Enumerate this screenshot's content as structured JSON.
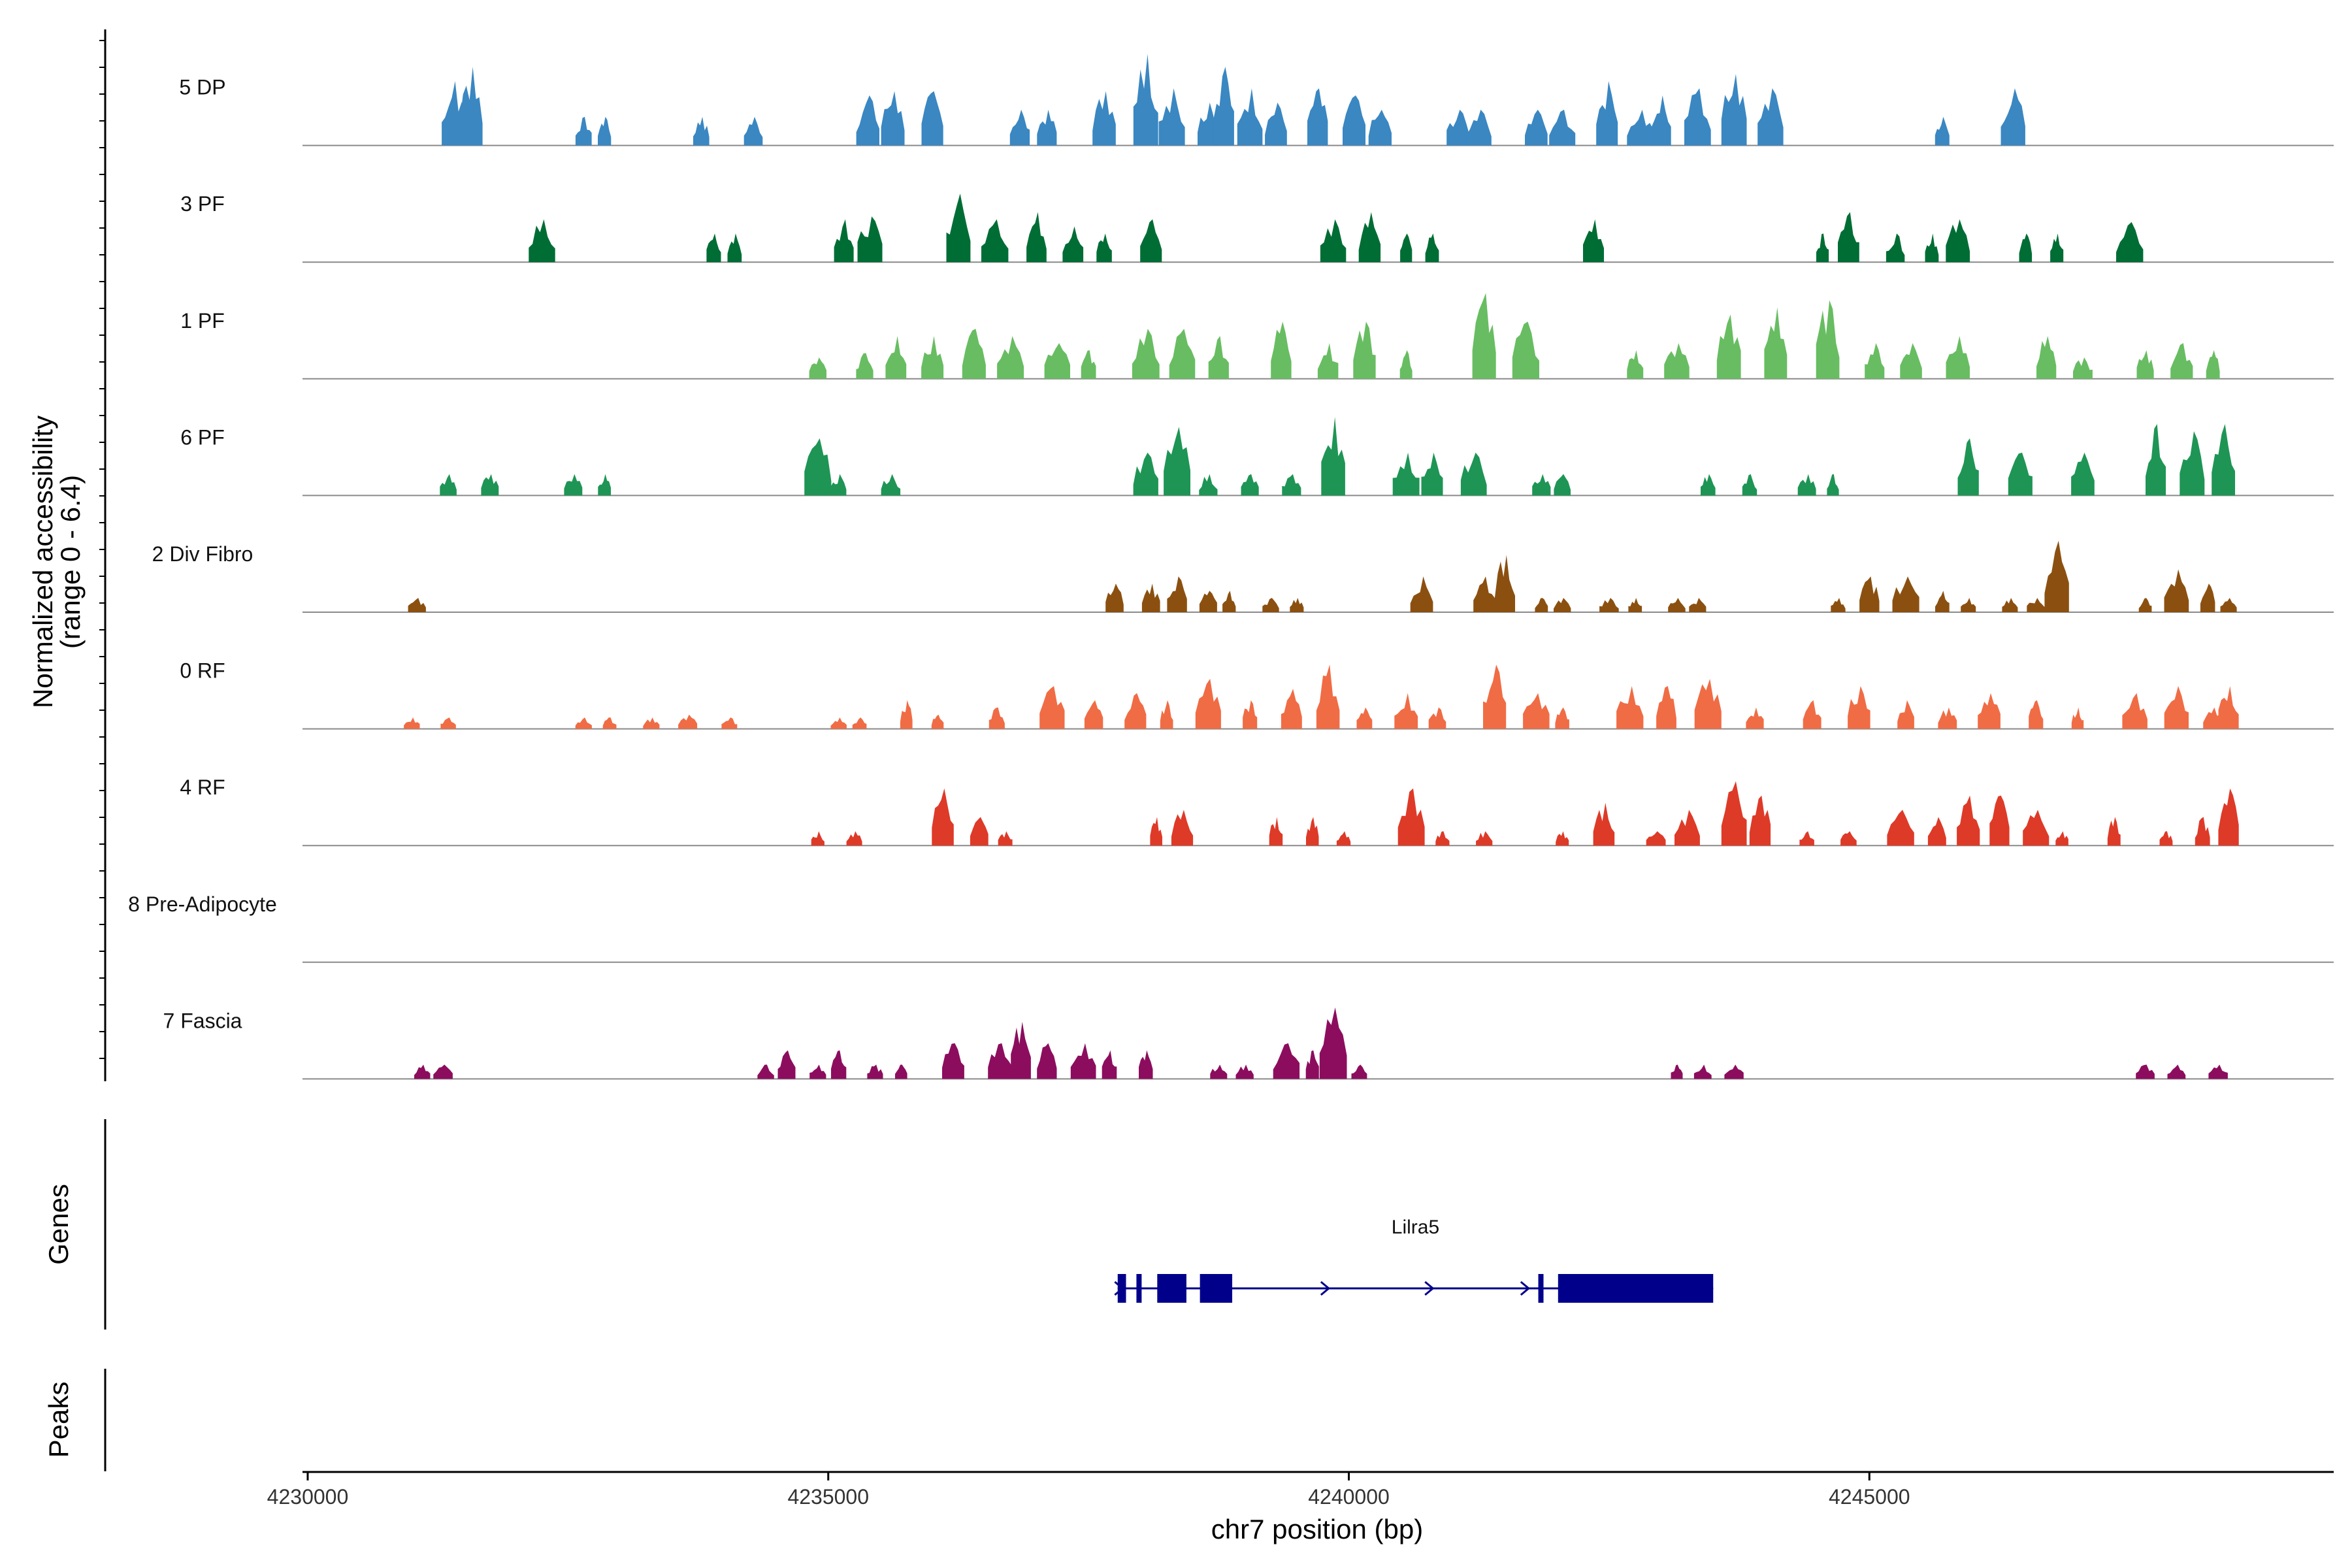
{
  "chart_data": {
    "type": "area",
    "title": "",
    "ylabel": "Normalized accessibility",
    "ylabel_range": "(range 0 - 6.4)",
    "ylim": [
      0,
      6.4
    ],
    "xlabel": "chr7 position (bp)",
    "xlim": [
      4229950,
      4249460
    ],
    "x_ticks": [
      4230000,
      4235000,
      4240000,
      4245000
    ],
    "x_tick_labels": [
      "4230000",
      "4235000",
      "4240000",
      "4245000"
    ],
    "tracks": [
      {
        "name": "5 DP",
        "color": "#3a87c2",
        "peaks": [
          [
            4231400,
            4.5
          ],
          [
            4231570,
            5.5
          ],
          [
            4232650,
            2.0
          ],
          [
            4232850,
            2.0
          ],
          [
            4233780,
            2.0
          ],
          [
            4234280,
            2.0
          ],
          [
            4235380,
            3.5
          ],
          [
            4235620,
            3.8
          ],
          [
            4236000,
            3.8
          ],
          [
            4236840,
            2.5
          ],
          [
            4237100,
            2.5
          ],
          [
            4237650,
            3.8
          ],
          [
            4238050,
            6.4
          ],
          [
            4238300,
            4.0
          ],
          [
            4238650,
            3.0
          ],
          [
            4238800,
            5.5
          ],
          [
            4239050,
            4.0
          ],
          [
            4239300,
            3.0
          ],
          [
            4239700,
            4.0
          ],
          [
            4240050,
            3.5
          ],
          [
            4240300,
            2.5
          ],
          [
            4241050,
            2.5
          ],
          [
            4241250,
            2.5
          ],
          [
            4241800,
            2.5
          ],
          [
            4242050,
            2.5
          ],
          [
            4242480,
            4.5
          ],
          [
            4242800,
            2.5
          ],
          [
            4243000,
            3.5
          ],
          [
            4243350,
            4.0
          ],
          [
            4243700,
            5.0
          ],
          [
            4244050,
            4.0
          ],
          [
            4245700,
            2.0
          ],
          [
            4246380,
            4.0
          ]
        ]
      },
      {
        "name": "3 PF",
        "color": "#006d35",
        "peaks": [
          [
            4232250,
            3.0
          ],
          [
            4233900,
            2.0
          ],
          [
            4234100,
            2.0
          ],
          [
            4235150,
            3.0
          ],
          [
            4235400,
            3.2
          ],
          [
            4236250,
            4.8
          ],
          [
            4236600,
            3.0
          ],
          [
            4237000,
            3.5
          ],
          [
            4237350,
            2.5
          ],
          [
            4237650,
            2.0
          ],
          [
            4238100,
            3.0
          ],
          [
            4239850,
            3.0
          ],
          [
            4240200,
            3.5
          ],
          [
            4240550,
            2.0
          ],
          [
            4240800,
            2.0
          ],
          [
            4242350,
            3.0
          ],
          [
            4244550,
            2.0
          ],
          [
            4244800,
            3.5
          ],
          [
            4245250,
            2.0
          ],
          [
            4245600,
            2.0
          ],
          [
            4245850,
            3.0
          ],
          [
            4246500,
            2.0
          ],
          [
            4246800,
            2.0
          ],
          [
            4247500,
            2.8
          ]
        ]
      },
      {
        "name": "1 PF",
        "color": "#68bd62",
        "peaks": [
          [
            4234900,
            1.5
          ],
          [
            4235350,
            1.8
          ],
          [
            4235650,
            3.0
          ],
          [
            4236000,
            3.0
          ],
          [
            4236400,
            3.5
          ],
          [
            4236750,
            3.0
          ],
          [
            4237200,
            2.5
          ],
          [
            4237500,
            2.0
          ],
          [
            4238050,
            3.5
          ],
          [
            4238400,
            3.5
          ],
          [
            4238750,
            3.0
          ],
          [
            4239350,
            4.0
          ],
          [
            4239800,
            2.5
          ],
          [
            4240150,
            4.0
          ],
          [
            4240550,
            2.0
          ],
          [
            4241300,
            6.0
          ],
          [
            4241700,
            4.0
          ],
          [
            4242750,
            2.0
          ],
          [
            4243150,
            2.5
          ],
          [
            4243650,
            4.5
          ],
          [
            4244100,
            5.0
          ],
          [
            4244600,
            5.5
          ],
          [
            4245050,
            2.5
          ],
          [
            4245400,
            2.5
          ],
          [
            4245850,
            3.0
          ],
          [
            4246700,
            3.0
          ],
          [
            4247050,
            1.5
          ],
          [
            4247650,
            2.0
          ],
          [
            4248000,
            2.5
          ],
          [
            4248300,
            2.0
          ]
        ]
      },
      {
        "name": "6 PF",
        "color": "#1e9555",
        "peaks": [
          [
            4231350,
            1.5
          ],
          [
            4231750,
            1.5
          ],
          [
            4232550,
            1.5
          ],
          [
            4232850,
            1.5
          ],
          [
            4234900,
            4.0
          ],
          [
            4235100,
            1.5
          ],
          [
            4235600,
            1.5
          ],
          [
            4238050,
            3.0
          ],
          [
            4238350,
            4.8
          ],
          [
            4238650,
            1.5
          ],
          [
            4239050,
            1.5
          ],
          [
            4239450,
            1.5
          ],
          [
            4239850,
            5.5
          ],
          [
            4240550,
            3.0
          ],
          [
            4240800,
            3.0
          ],
          [
            4241200,
            3.0
          ],
          [
            4241850,
            1.5
          ],
          [
            4242050,
            1.5
          ],
          [
            4243450,
            1.5
          ],
          [
            4243850,
            1.5
          ],
          [
            4244400,
            1.5
          ],
          [
            4244650,
            1.5
          ],
          [
            4245950,
            4.0
          ],
          [
            4246450,
            3.0
          ],
          [
            4247050,
            3.0
          ],
          [
            4247750,
            5.0
          ],
          [
            4248100,
            4.5
          ],
          [
            4248400,
            5.0
          ]
        ]
      },
      {
        "name": "2 Div Fibro",
        "color": "#8b5010",
        "peaks": [
          [
            4231050,
            1.0
          ],
          [
            4237750,
            2.0
          ],
          [
            4238100,
            2.0
          ],
          [
            4238350,
            2.5
          ],
          [
            4238650,
            1.5
          ],
          [
            4238850,
            1.5
          ],
          [
            4239250,
            1.0
          ],
          [
            4239500,
            1.0
          ],
          [
            4240700,
            2.5
          ],
          [
            4241300,
            2.5
          ],
          [
            4241500,
            4.0
          ],
          [
            4241850,
            1.0
          ],
          [
            4242050,
            1.0
          ],
          [
            4242500,
            1.0
          ],
          [
            4242750,
            1.0
          ],
          [
            4243150,
            1.0
          ],
          [
            4243350,
            1.0
          ],
          [
            4244700,
            1.0
          ],
          [
            4245000,
            2.5
          ],
          [
            4245350,
            2.5
          ],
          [
            4245700,
            1.5
          ],
          [
            4245950,
            1.0
          ],
          [
            4246350,
            1.0
          ],
          [
            4246600,
            1.0
          ],
          [
            4246800,
            5.0
          ],
          [
            4247650,
            1.0
          ],
          [
            4247950,
            3.0
          ],
          [
            4248250,
            2.0
          ],
          [
            4248450,
            1.0
          ]
        ]
      },
      {
        "name": "0 RF",
        "color": "#f06c45",
        "peaks": [
          [
            4231000,
            0.8
          ],
          [
            4231350,
            0.8
          ],
          [
            4232650,
            0.8
          ],
          [
            4232900,
            0.8
          ],
          [
            4233300,
            0.8
          ],
          [
            4233650,
            1.0
          ],
          [
            4234050,
            0.8
          ],
          [
            4235100,
            0.8
          ],
          [
            4235300,
            0.8
          ],
          [
            4235750,
            2.0
          ],
          [
            4236050,
            1.0
          ],
          [
            4236620,
            1.5
          ],
          [
            4237150,
            3.0
          ],
          [
            4237550,
            2.0
          ],
          [
            4237950,
            2.5
          ],
          [
            4238250,
            2.0
          ],
          [
            4238650,
            3.5
          ],
          [
            4239050,
            2.0
          ],
          [
            4239450,
            2.8
          ],
          [
            4239800,
            4.5
          ],
          [
            4240150,
            1.5
          ],
          [
            4240550,
            2.5
          ],
          [
            4240850,
            1.5
          ],
          [
            4241400,
            4.5
          ],
          [
            4241800,
            2.5
          ],
          [
            4242050,
            1.5
          ],
          [
            4242700,
            3.0
          ],
          [
            4243050,
            3.0
          ],
          [
            4243450,
            3.5
          ],
          [
            4243900,
            1.5
          ],
          [
            4244450,
            2.0
          ],
          [
            4244900,
            3.0
          ],
          [
            4245350,
            2.0
          ],
          [
            4245750,
            1.5
          ],
          [
            4246150,
            2.5
          ],
          [
            4246600,
            2.0
          ],
          [
            4247000,
            1.5
          ],
          [
            4247550,
            2.5
          ],
          [
            4247950,
            3.0
          ],
          [
            4248300,
            1.5
          ],
          [
            4248450,
            3.0
          ]
        ]
      },
      {
        "name": "4 RF",
        "color": "#de3a28",
        "peaks": [
          [
            4234900,
            1.0
          ],
          [
            4235250,
            1.0
          ],
          [
            4236100,
            4.0
          ],
          [
            4236450,
            2.0
          ],
          [
            4236700,
            1.0
          ],
          [
            4238150,
            2.0
          ],
          [
            4238400,
            2.5
          ],
          [
            4239300,
            2.0
          ],
          [
            4239650,
            2.0
          ],
          [
            4239950,
            1.0
          ],
          [
            4240600,
            4.0
          ],
          [
            4240900,
            1.0
          ],
          [
            4241300,
            1.0
          ],
          [
            4242050,
            1.0
          ],
          [
            4242450,
            3.0
          ],
          [
            4242950,
            1.0
          ],
          [
            4243250,
            2.5
          ],
          [
            4243700,
            4.5
          ],
          [
            4243950,
            3.5
          ],
          [
            4244400,
            1.0
          ],
          [
            4244800,
            1.0
          ],
          [
            4245300,
            2.5
          ],
          [
            4245650,
            2.0
          ],
          [
            4245950,
            3.5
          ],
          [
            4246250,
            3.5
          ],
          [
            4246600,
            2.5
          ],
          [
            4246850,
            1.0
          ],
          [
            4247350,
            2.0
          ],
          [
            4247850,
            1.0
          ],
          [
            4248200,
            2.0
          ],
          [
            4248450,
            4.0
          ]
        ]
      },
      {
        "name": "8 Pre-Adipocyte",
        "color": "#aaaaaa",
        "peaks": []
      },
      {
        "name": "7 Fascia",
        "color": "#8c0d5e",
        "peaks": [
          [
            4231100,
            1.0
          ],
          [
            4231300,
            1.0
          ],
          [
            4234400,
            1.0
          ],
          [
            4234600,
            2.0
          ],
          [
            4234900,
            1.0
          ],
          [
            4235100,
            2.0
          ],
          [
            4235450,
            1.0
          ],
          [
            4235700,
            1.0
          ],
          [
            4236200,
            2.5
          ],
          [
            4236650,
            2.5
          ],
          [
            4236850,
            4.0
          ],
          [
            4237100,
            2.5
          ],
          [
            4237450,
            2.5
          ],
          [
            4237700,
            2.0
          ],
          [
            4238050,
            2.0
          ],
          [
            4238750,
            1.0
          ],
          [
            4239000,
            1.0
          ],
          [
            4239400,
            2.5
          ],
          [
            4239650,
            2.0
          ],
          [
            4239850,
            5.0
          ],
          [
            4240100,
            1.0
          ],
          [
            4243150,
            1.0
          ],
          [
            4243400,
            1.0
          ],
          [
            4243700,
            1.0
          ],
          [
            4247650,
            1.0
          ],
          [
            4247950,
            1.0
          ],
          [
            4248350,
            1.0
          ]
        ]
      }
    ],
    "genes": [
      {
        "name": "Lilra5",
        "strand": "+",
        "start": 4237780,
        "end": 4243500,
        "exons": [
          [
            4237780,
            4237860
          ],
          [
            4237960,
            4238010
          ],
          [
            4238160,
            4238440
          ],
          [
            4238570,
            4238880
          ],
          [
            4241820,
            4241870
          ],
          [
            4242010,
            4243500
          ]
        ],
        "arrows": [
          4237790,
          4239770,
          4240770,
          4241690
        ]
      }
    ],
    "panels": {
      "genes_label": "Genes",
      "peaks_label": "Peaks"
    }
  }
}
